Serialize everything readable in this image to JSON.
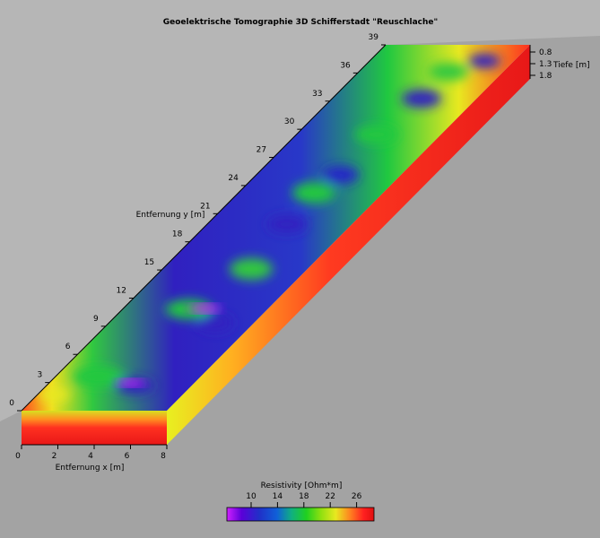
{
  "title": "Geoelektrische Tomographie 3D Schifferstadt \"Reuschlache\"",
  "axes": {
    "x": {
      "label": "Entfernung x [m]",
      "ticks": [
        "0",
        "2",
        "4",
        "6",
        "8"
      ],
      "range": [
        0,
        8
      ]
    },
    "y": {
      "label": "Entfernung y [m]",
      "ticks": [
        "0",
        "3",
        "6",
        "9",
        "12",
        "15",
        "18",
        "21",
        "24",
        "27",
        "30",
        "33",
        "36",
        "39"
      ],
      "range": [
        0,
        39
      ]
    },
    "z": {
      "label": "Tiefe [m]",
      "ticks": [
        "0.8",
        "1.3",
        "1.8"
      ]
    }
  },
  "colorbar": {
    "label": "Resistivity [Ohm*m]",
    "ticks": [
      "10",
      "14",
      "18",
      "22",
      "26"
    ],
    "colors": [
      "#d020ff",
      "#5a00d8",
      "#2030c8",
      "#1060d8",
      "#10b080",
      "#20d020",
      "#90e010",
      "#e8e820",
      "#ff8020",
      "#ff2020",
      "#e01010"
    ]
  },
  "colors": {
    "background_upper": "#b6b6b6",
    "background_lower": "#a3a3a3",
    "low": "#3020c0",
    "mid": "#20c840",
    "high": "#ff2a20"
  }
}
